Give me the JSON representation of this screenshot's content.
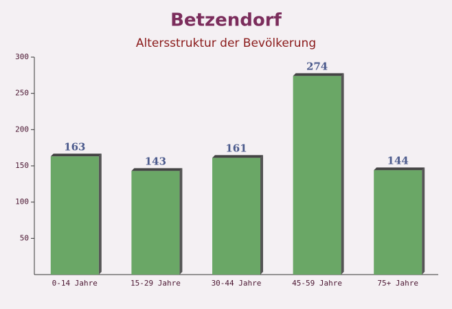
{
  "chart_data": {
    "type": "bar",
    "title": "Betzendorf",
    "subtitle": "Altersstruktur der Bevölkerung",
    "categories": [
      "0-14 Jahre",
      "15-29 Jahre",
      "30-44 Jahre",
      "45-59 Jahre",
      "75+ Jahre"
    ],
    "values": [
      163,
      143,
      161,
      274,
      144
    ],
    "color": "#6aa766",
    "ylim": [
      0,
      300
    ],
    "yticks": [
      50,
      100,
      150,
      200,
      250,
      300
    ]
  }
}
